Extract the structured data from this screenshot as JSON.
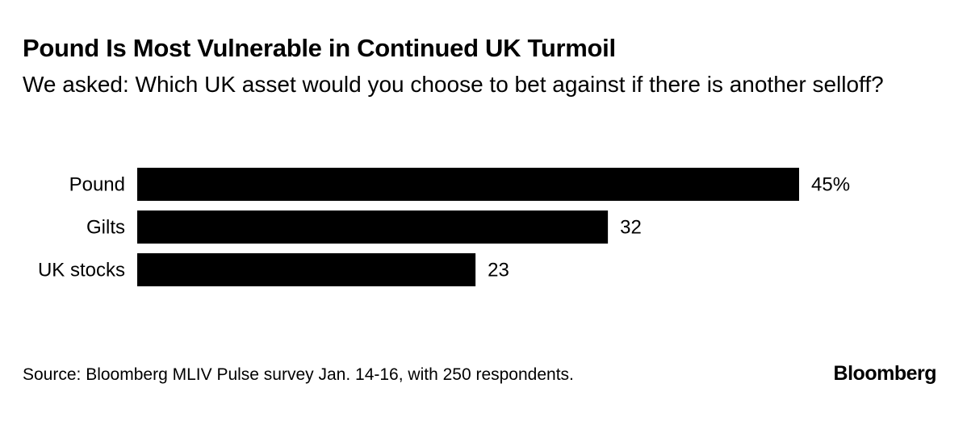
{
  "title": "Pound Is Most Vulnerable in Continued UK Turmoil",
  "subtitle": "We asked: Which UK asset would you choose to bet against if there is another selloff?",
  "source": "Source: Bloomberg MLIV Pulse survey Jan. 14-16, with 250 respondents.",
  "logo": "Bloomberg",
  "chart_data": {
    "type": "bar",
    "orientation": "horizontal",
    "categories": [
      "Pound",
      "Gilts",
      "UK stocks"
    ],
    "values": [
      45,
      32,
      23
    ],
    "data_labels": [
      "45%",
      "32",
      "23"
    ],
    "unit": "%",
    "title": "Pound Is Most Vulnerable in Continued UK Turmoil",
    "xlabel": "",
    "ylabel": "",
    "xlim": [
      0,
      45
    ],
    "bar_color": "#000000"
  }
}
